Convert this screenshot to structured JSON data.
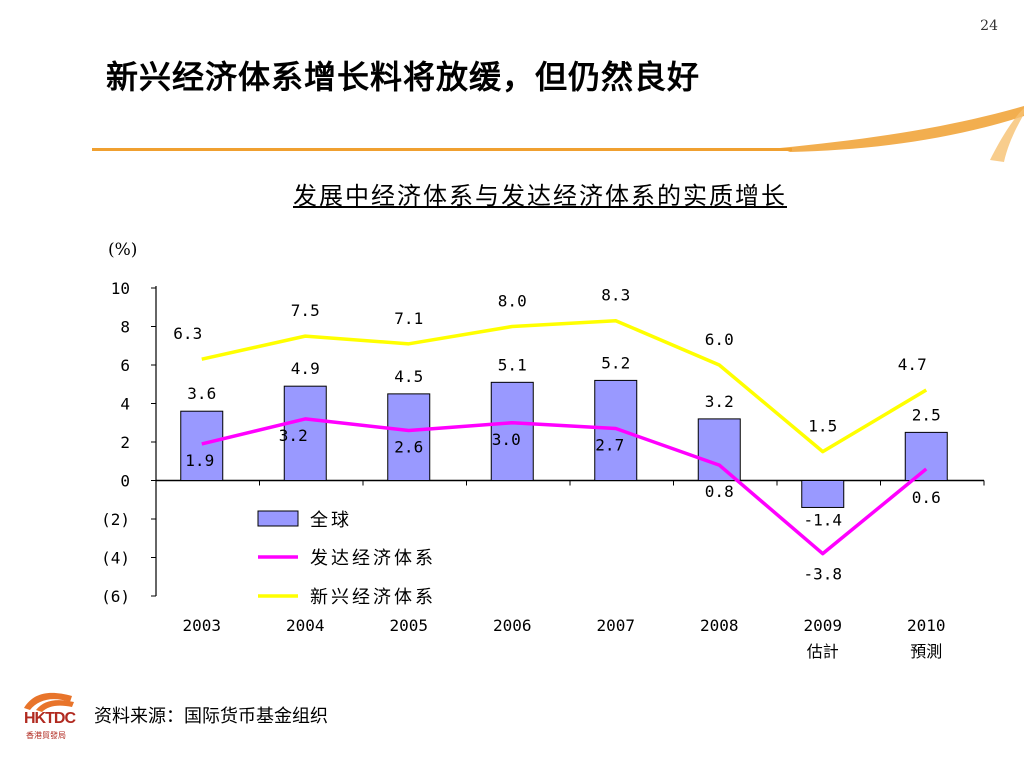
{
  "page_number": "24",
  "slide_title": "新兴经济体系增长料将放缓，但仍然良好",
  "source_text": "资料来源：国际货币基金组织",
  "logo": {
    "text": "HKTDC",
    "subtext": "香港貿發局"
  },
  "colors": {
    "global_bar": "#9999ff",
    "developed_line": "#ff00ff",
    "emerging_line": "#ffff00",
    "accent": "#f0a030"
  },
  "chart_data": {
    "type": "bar",
    "title": "发展中经济体系与发达经济体系的实质增长",
    "unit_label": "(%)",
    "categories": [
      "2003",
      "2004",
      "2005",
      "2006",
      "2007",
      "2008",
      "2009",
      "2010"
    ],
    "category_sublabels": [
      "",
      "",
      "",
      "",
      "",
      "",
      "估計",
      "預測"
    ],
    "ylim": [
      -6,
      10
    ],
    "y_ticks": [
      10,
      8,
      6,
      4,
      2,
      0,
      -2,
      -4,
      -6
    ],
    "y_tick_labels": [
      "10",
      "8",
      "6",
      "4",
      "2",
      "0",
      "(2)",
      "(4)",
      "(6)"
    ],
    "series": [
      {
        "name": "全球",
        "type": "bar",
        "values": [
          3.6,
          4.9,
          4.5,
          5.1,
          5.2,
          3.2,
          -1.4,
          2.5
        ],
        "labels": [
          "3.6",
          "4.9",
          "4.5",
          "5.1",
          "5.2",
          "3.2",
          "-1.4",
          "2.5"
        ]
      },
      {
        "name": "发达经济体系",
        "type": "line",
        "values": [
          1.9,
          3.2,
          2.6,
          3.0,
          2.7,
          0.8,
          -3.8,
          0.6
        ],
        "labels": [
          "1.9",
          "3.2",
          "2.6",
          "3.0",
          "2.7",
          "0.8",
          "-3.8",
          "0.6"
        ]
      },
      {
        "name": "新兴经济体系",
        "type": "line",
        "values": [
          6.3,
          7.5,
          7.1,
          8.0,
          8.3,
          6.0,
          1.5,
          4.7
        ],
        "labels": [
          "6.3",
          "7.5",
          "7.1",
          "8.0",
          "8.3",
          "6.0",
          "1.5",
          "4.7"
        ]
      }
    ],
    "legend_position": "bottom-left"
  }
}
